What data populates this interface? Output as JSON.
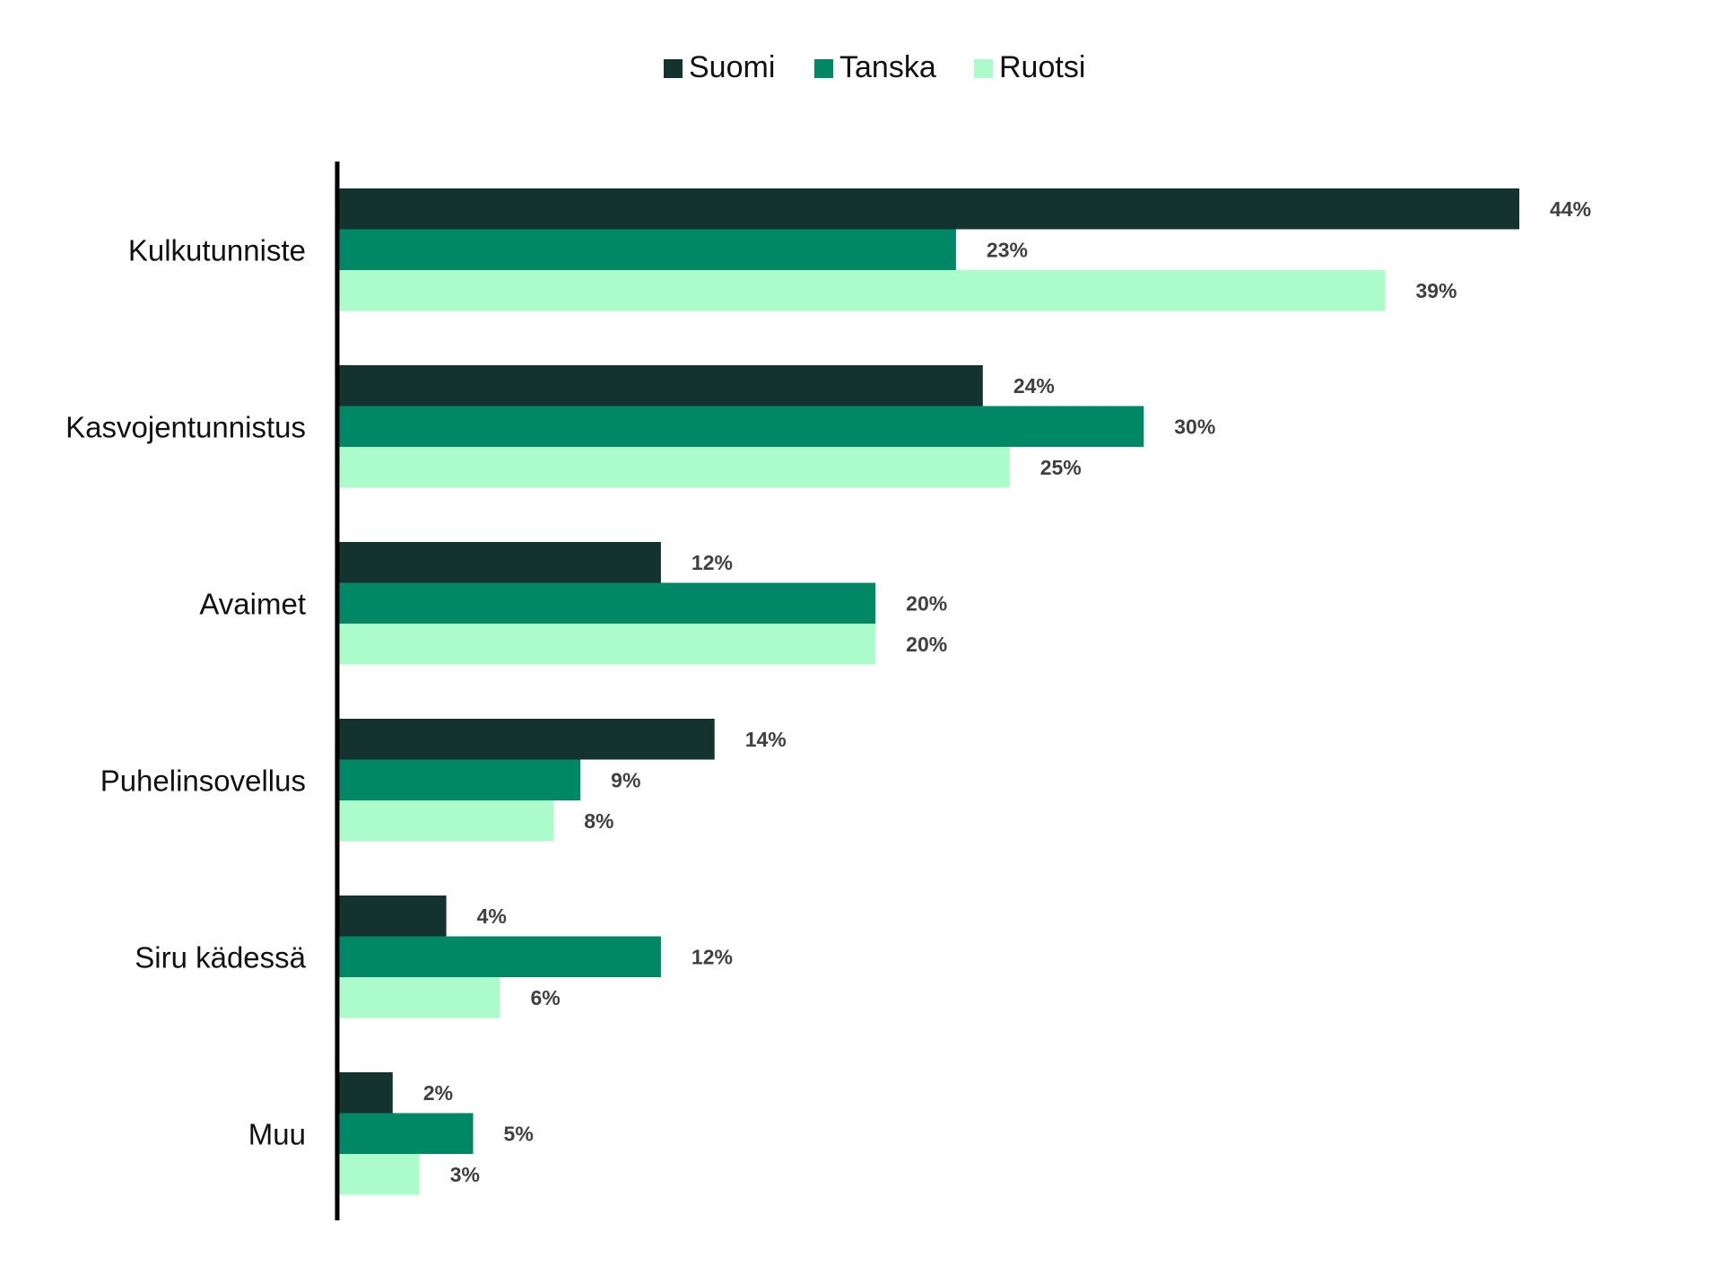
{
  "chart_data": {
    "type": "bar",
    "orientation": "horizontal",
    "categories": [
      "Kulkutunniste",
      "Kasvojentunnistus",
      "Avaimet",
      "Puhelinsovellus",
      "Siru kädessä",
      "Muu"
    ],
    "series": [
      {
        "name": "Suomi",
        "color": "#14332f",
        "values": [
          44,
          24,
          12,
          14,
          4,
          2
        ],
        "labels": [
          "44%",
          "24%",
          "12%",
          "14%",
          "4%",
          "2%"
        ]
      },
      {
        "name": "Tanska",
        "color": "#008866",
        "values": [
          23,
          30,
          20,
          9,
          12,
          5
        ],
        "labels": [
          "23%",
          "30%",
          "20%",
          "9%",
          "12%",
          "5%"
        ]
      },
      {
        "name": "Ruotsi",
        "color": "#abfbcb",
        "values": [
          39,
          25,
          20,
          8,
          6,
          3
        ],
        "labels": [
          "39%",
          "25%",
          "20%",
          "8%",
          "6%",
          "3%"
        ]
      }
    ],
    "title": "",
    "xlabel": "",
    "ylabel": "",
    "xlim": [
      0,
      44
    ],
    "value_format": "percent",
    "grid": false,
    "legend": "top-center"
  }
}
